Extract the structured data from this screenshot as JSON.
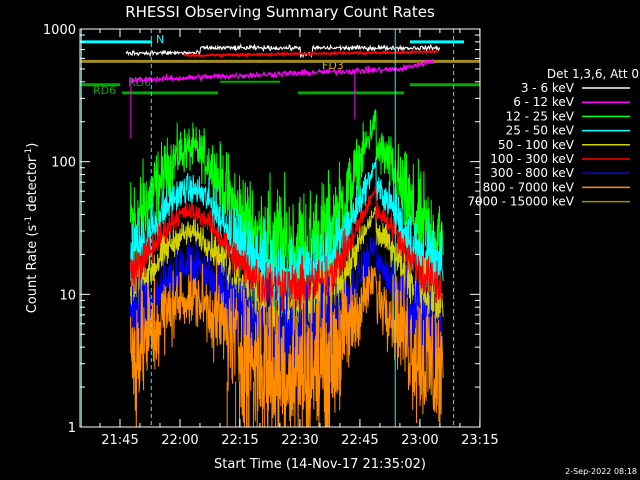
{
  "chart_data": {
    "type": "line",
    "title": "RHESSI Observing Summary Count Rates",
    "xlabel": "Start Time (14-Nov-17 21:35:02)",
    "ylabel_main": "Count Rate (s",
    "ylabel_sup1": "-1",
    "ylabel_mid": " detector",
    "ylabel_sup2": "-1",
    "ylabel_end": ")",
    "yscale": "log",
    "ylim": [
      1,
      1000
    ],
    "xlim_minutes": [
      -0.03,
      100
    ],
    "x_ticks": [
      {
        "m": 9.97,
        "label": "21:45"
      },
      {
        "m": 24.97,
        "label": "22:00"
      },
      {
        "m": 39.97,
        "label": "22:15"
      },
      {
        "m": 54.97,
        "label": "22:30"
      },
      {
        "m": 69.97,
        "label": "22:45"
      },
      {
        "m": 84.97,
        "label": "23:00"
      },
      {
        "m": 99.97,
        "label": "23:15"
      }
    ],
    "y_ticks": [
      {
        "v": 1,
        "label": "1"
      },
      {
        "v": 10,
        "label": "10"
      },
      {
        "v": 100,
        "label": "100"
      },
      {
        "v": 1000,
        "label": "1000"
      }
    ],
    "legend_title": "Det 1,3,6, Att 0",
    "legend_position": "right",
    "series": [
      {
        "name": "3 - 6 keV",
        "color": "#ffffff"
      },
      {
        "name": "6 - 12 keV",
        "color": "#ff00ff"
      },
      {
        "name": "12 - 25 keV",
        "color": "#00ff00"
      },
      {
        "name": "25 - 50 keV",
        "color": "#00ffff"
      },
      {
        "name": "50 - 100 keV",
        "color": "#d2d200"
      },
      {
        "name": "100 - 300 keV",
        "color": "#ff0000"
      },
      {
        "name": "300 - 800 keV",
        "color": "#0000ff"
      },
      {
        "name": "800 - 7000 keV",
        "color": "#ff8c00"
      },
      {
        "name": "7000 - 15000 keV",
        "color": "#a08c1e"
      }
    ],
    "flag_labels": [
      {
        "text": "N",
        "color": "#00ffff"
      },
      {
        "text": "FD3",
        "color": "#d2b400"
      },
      {
        "text": "RD6",
        "color": "#00aa00"
      },
      {
        "text": "RD6",
        "color": "#00aa00"
      }
    ],
    "timestamp": "2-Sep-2022 08:18"
  }
}
